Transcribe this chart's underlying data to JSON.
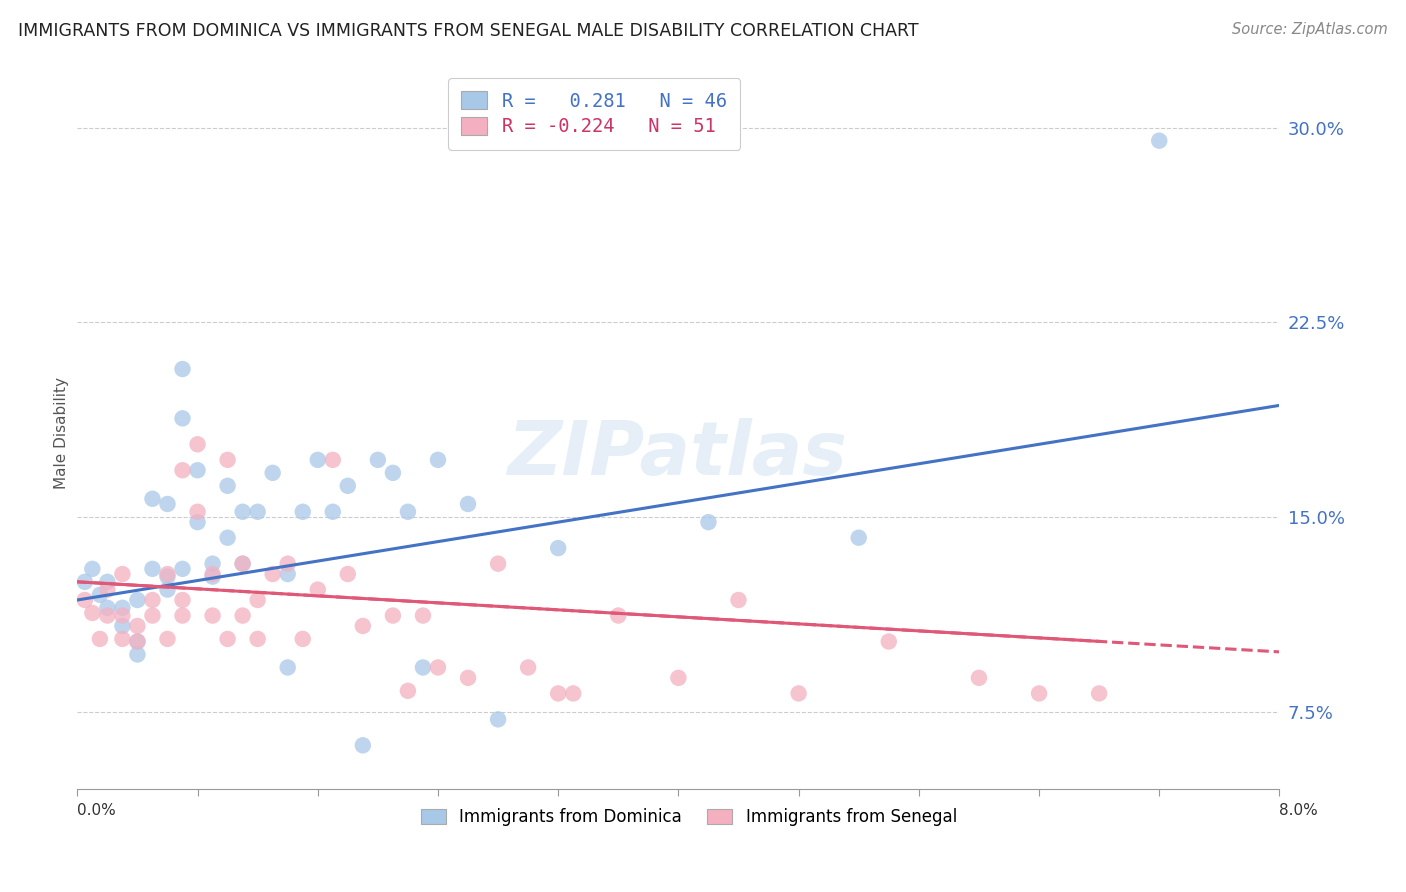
{
  "title": "IMMIGRANTS FROM DOMINICA VS IMMIGRANTS FROM SENEGAL MALE DISABILITY CORRELATION CHART",
  "source": "Source: ZipAtlas.com",
  "ylabel": "Male Disability",
  "ytick_values": [
    0.075,
    0.15,
    0.225,
    0.3
  ],
  "ytick_labels": [
    "7.5%",
    "15.0%",
    "22.5%",
    "30.0%"
  ],
  "xlim": [
    0.0,
    0.08
  ],
  "ylim": [
    0.045,
    0.32
  ],
  "color_dominica": "#a8c8e8",
  "color_senegal": "#f4b0c0",
  "color_dominica_line": "#4472c4",
  "color_senegal_line": "#e05878",
  "watermark": "ZIPatlas",
  "dominica_line_x0": 0.0,
  "dominica_line_y0": 0.118,
  "dominica_line_x1": 0.08,
  "dominica_line_y1": 0.193,
  "senegal_line_x0": 0.0,
  "senegal_line_y0": 0.125,
  "senegal_line_x1": 0.08,
  "senegal_line_y1": 0.098,
  "dominica_x": [
    0.0005,
    0.001,
    0.0015,
    0.002,
    0.002,
    0.003,
    0.003,
    0.004,
    0.004,
    0.004,
    0.005,
    0.005,
    0.006,
    0.006,
    0.006,
    0.007,
    0.007,
    0.007,
    0.008,
    0.008,
    0.009,
    0.009,
    0.01,
    0.01,
    0.011,
    0.011,
    0.012,
    0.013,
    0.014,
    0.014,
    0.015,
    0.016,
    0.017,
    0.018,
    0.019,
    0.02,
    0.021,
    0.022,
    0.023,
    0.024,
    0.026,
    0.028,
    0.032,
    0.042,
    0.052,
    0.072
  ],
  "dominica_y": [
    0.125,
    0.13,
    0.12,
    0.115,
    0.125,
    0.115,
    0.108,
    0.102,
    0.097,
    0.118,
    0.13,
    0.157,
    0.122,
    0.127,
    0.155,
    0.13,
    0.188,
    0.207,
    0.168,
    0.148,
    0.132,
    0.127,
    0.162,
    0.142,
    0.152,
    0.132,
    0.152,
    0.167,
    0.128,
    0.092,
    0.152,
    0.172,
    0.152,
    0.162,
    0.062,
    0.172,
    0.167,
    0.152,
    0.092,
    0.172,
    0.155,
    0.072,
    0.138,
    0.148,
    0.142,
    0.295
  ],
  "senegal_x": [
    0.0005,
    0.001,
    0.0015,
    0.002,
    0.002,
    0.003,
    0.003,
    0.003,
    0.004,
    0.004,
    0.005,
    0.005,
    0.006,
    0.006,
    0.007,
    0.007,
    0.007,
    0.008,
    0.008,
    0.009,
    0.009,
    0.01,
    0.01,
    0.011,
    0.011,
    0.012,
    0.012,
    0.013,
    0.014,
    0.015,
    0.016,
    0.017,
    0.018,
    0.019,
    0.021,
    0.022,
    0.023,
    0.024,
    0.026,
    0.028,
    0.03,
    0.032,
    0.033,
    0.036,
    0.04,
    0.044,
    0.048,
    0.054,
    0.06,
    0.064,
    0.068
  ],
  "senegal_y": [
    0.118,
    0.113,
    0.103,
    0.122,
    0.112,
    0.103,
    0.112,
    0.128,
    0.108,
    0.102,
    0.112,
    0.118,
    0.128,
    0.103,
    0.112,
    0.168,
    0.118,
    0.178,
    0.152,
    0.128,
    0.112,
    0.172,
    0.103,
    0.132,
    0.112,
    0.103,
    0.118,
    0.128,
    0.132,
    0.103,
    0.122,
    0.172,
    0.128,
    0.108,
    0.112,
    0.083,
    0.112,
    0.092,
    0.088,
    0.132,
    0.092,
    0.082,
    0.082,
    0.112,
    0.088,
    0.118,
    0.082,
    0.102,
    0.088,
    0.082,
    0.082
  ]
}
